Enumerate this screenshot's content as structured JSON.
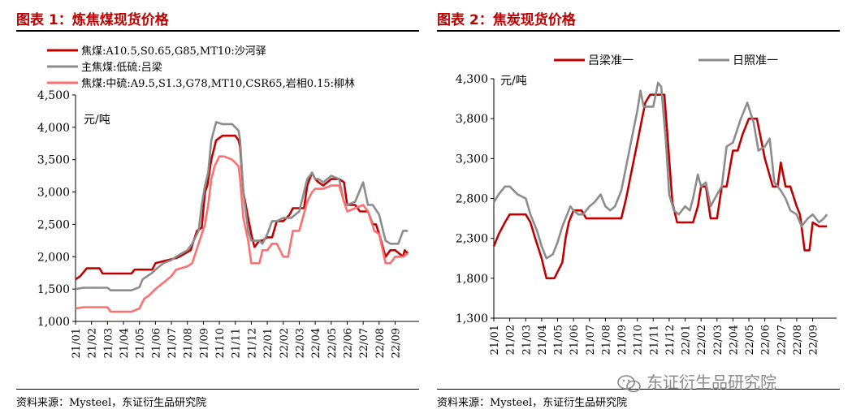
{
  "panels": [
    {
      "title": "图表 1：炼焦煤现货价格",
      "unit": "元/吨",
      "source": "资料来源：Mysteel，东证衍生品研究院"
    },
    {
      "title": "图表 2：焦炭现货价格",
      "unit": "元/吨",
      "source": "资料来源：Mysteel，东证衍生品研究院"
    }
  ],
  "watermark": "东证衍生品研究院",
  "chart_data": [
    {
      "type": "line",
      "title": "炼焦煤现货价格",
      "ylabel": "元/吨",
      "ylim": [
        1000,
        4500
      ],
      "yticks": [
        1000,
        1500,
        2000,
        2500,
        3000,
        3500,
        4000,
        4500
      ],
      "ytick_labels": [
        "1,000",
        "1,500",
        "2,000",
        "2,500",
        "3,000",
        "3,500",
        "4,000",
        "4,500"
      ],
      "xlim": [
        0,
        21.5
      ],
      "xtick_labels": [
        "21/01",
        "21/02",
        "21/03",
        "21/04",
        "21/05",
        "21/06",
        "21/07",
        "21/08",
        "21/09",
        "21/10",
        "21/11",
        "21/12",
        "22/01",
        "22/02",
        "22/03",
        "22/04",
        "22/05",
        "22/06",
        "22/07",
        "22/08",
        "22/09"
      ],
      "legend_position": "top-left",
      "grid": false,
      "series": [
        {
          "name": "焦煤:A10.5,S0.65,G85,MT10:沙河驿",
          "color": "#c00000",
          "x": [
            0,
            0.3,
            0.7,
            1.5,
            1.7,
            3.5,
            3.7,
            4.8,
            5.0,
            6.3,
            6.5,
            7.2,
            7.6,
            7.9,
            8.1,
            8.25,
            8.5,
            8.8,
            9.2,
            10.0,
            10.2,
            10.3,
            10.5,
            10.8,
            11.0,
            11.2,
            11.5,
            11.7,
            12.0,
            12.3,
            12.6,
            13.0,
            13.4,
            13.6,
            14.3,
            14.5,
            14.8,
            15.0,
            15.2,
            15.5,
            16.0,
            16.5,
            16.8,
            17.0,
            17.3,
            17.5,
            17.8,
            18.0,
            18.3,
            18.6,
            18.8,
            19.0,
            19.4,
            19.7,
            20.0,
            20.5,
            20.6,
            20.8
          ],
          "y": [
            1650,
            1700,
            1820,
            1820,
            1740,
            1740,
            1800,
            1800,
            1900,
            1980,
            2000,
            2100,
            2400,
            2450,
            3000,
            3100,
            3500,
            3800,
            3870,
            3870,
            3800,
            3700,
            3000,
            2600,
            2350,
            2150,
            2250,
            2250,
            2300,
            2300,
            2550,
            2550,
            2650,
            2750,
            2750,
            3100,
            3300,
            3200,
            3150,
            3100,
            3200,
            3200,
            3150,
            2800,
            2800,
            2800,
            2700,
            2700,
            2700,
            2500,
            2500,
            2350,
            2000,
            2100,
            2100,
            2000,
            2100,
            2050
          ]
        },
        {
          "name": "主焦煤:低硫:吕梁",
          "color": "#8c8c8c",
          "x": [
            0,
            0.5,
            2.0,
            2.2,
            3.5,
            4.0,
            4.2,
            4.5,
            4.8,
            5.0,
            5.5,
            6.0,
            6.3,
            7.0,
            7.3,
            7.5,
            7.7,
            7.9,
            8.1,
            8.3,
            8.5,
            8.8,
            9.2,
            9.8,
            10.2,
            10.3,
            10.5,
            10.8,
            11.0,
            11.5,
            11.7,
            12.0,
            12.3,
            12.6,
            13.0,
            13.5,
            14.0,
            14.5,
            14.8,
            15.0,
            15.2,
            15.5,
            16.0,
            16.5,
            16.8,
            17.0,
            17.5,
            18.0,
            18.3,
            18.6,
            19.0,
            19.4,
            19.7,
            20.0,
            20.2,
            20.5,
            20.8
          ],
          "y": [
            1500,
            1520,
            1520,
            1480,
            1480,
            1530,
            1650,
            1700,
            1750,
            1800,
            1900,
            1950,
            2000,
            2100,
            2200,
            2300,
            2400,
            2800,
            3100,
            3300,
            3800,
            4080,
            4050,
            4050,
            3950,
            3800,
            3000,
            2400,
            2250,
            2250,
            2200,
            2350,
            2550,
            2550,
            2600,
            2600,
            2700,
            3200,
            3300,
            3200,
            3200,
            3150,
            3250,
            3200,
            2850,
            2800,
            2850,
            3150,
            2800,
            2800,
            2650,
            2250,
            2200,
            2200,
            2200,
            2400,
            2400
          ]
        },
        {
          "name": "焦煤:中硫:A9.5,S1.3,G78,MT10,CSR65,岩相0.15:柳林",
          "color": "#ff6f6f",
          "x": [
            0,
            0.5,
            2.0,
            2.2,
            3.5,
            4.0,
            4.3,
            4.6,
            5.0,
            5.5,
            6.0,
            6.3,
            7.0,
            7.3,
            7.7,
            8.1,
            8.3,
            8.5,
            8.7,
            9.0,
            9.3,
            9.8,
            10.2,
            10.3,
            10.5,
            10.8,
            11.0,
            11.5,
            11.7,
            12.0,
            12.3,
            12.6,
            13.0,
            13.3,
            13.6,
            14.0,
            14.5,
            14.8,
            15.0,
            15.5,
            16.0,
            16.5,
            16.8,
            17.0,
            17.5,
            18.0,
            18.3,
            18.7,
            19.0,
            19.4,
            19.7,
            20.0,
            20.5,
            20.8
          ],
          "y": [
            1200,
            1220,
            1220,
            1150,
            1150,
            1200,
            1350,
            1400,
            1500,
            1600,
            1700,
            1800,
            1850,
            1900,
            2200,
            2500,
            2800,
            3200,
            3400,
            3550,
            3550,
            3500,
            3400,
            3200,
            2600,
            2250,
            1900,
            1900,
            2100,
            2100,
            2200,
            2200,
            2000,
            2000,
            2400,
            2400,
            2850,
            3000,
            3050,
            3050,
            3100,
            3100,
            2850,
            2700,
            2750,
            2800,
            2700,
            2400,
            2350,
            1900,
            1900,
            2000,
            2000,
            2050
          ]
        }
      ]
    },
    {
      "type": "line",
      "title": "焦炭现货价格",
      "ylabel": "元/吨",
      "ylim": [
        1300,
        4300
      ],
      "yticks": [
        1300,
        1800,
        2300,
        2800,
        3300,
        3800,
        4300
      ],
      "ytick_labels": [
        "1,300",
        "1,800",
        "2,300",
        "2,800",
        "3,300",
        "3,800",
        "4,300"
      ],
      "xlim": [
        0,
        21.5
      ],
      "xtick_labels": [
        "21/01",
        "21/02",
        "21/03",
        "21/04",
        "21/05",
        "21/06",
        "21/07",
        "21/08",
        "21/09",
        "21/10",
        "21/11",
        "21/12",
        "22/01",
        "22/02",
        "22/03",
        "22/04",
        "22/05",
        "22/06",
        "22/07",
        "22/08",
        "22/09"
      ],
      "legend_position": "top",
      "grid": false,
      "series": [
        {
          "name": "吕梁准一",
          "color": "#c00000",
          "x": [
            0,
            0.3,
            0.7,
            1.0,
            1.3,
            2.0,
            2.3,
            2.6,
            3.0,
            3.3,
            3.5,
            3.8,
            4.3,
            4.5,
            4.7,
            5.0,
            5.5,
            5.8,
            6.0,
            6.3,
            7.0,
            7.5,
            8.0,
            8.3,
            8.6,
            9.0,
            9.3,
            9.5,
            9.8,
            10.0,
            10.5,
            10.7,
            11.0,
            11.2,
            11.5,
            11.8,
            12.0,
            12.5,
            12.8,
            13.0,
            13.3,
            13.6,
            14.0,
            14.3,
            14.6,
            15.0,
            15.3,
            15.6,
            16.0,
            16.5,
            17.0,
            17.5,
            17.8,
            18.0,
            18.3,
            18.6,
            19.0,
            19.2,
            19.5,
            19.8,
            20.0,
            20.4,
            20.7,
            20.9
          ],
          "y": [
            2200,
            2350,
            2500,
            2600,
            2600,
            2600,
            2500,
            2300,
            2050,
            1800,
            1800,
            1800,
            2000,
            2300,
            2500,
            2650,
            2650,
            2550,
            2550,
            2550,
            2550,
            2550,
            2550,
            2800,
            3100,
            3500,
            3800,
            4000,
            4100,
            4100,
            4100,
            4100,
            3300,
            2750,
            2500,
            2500,
            2500,
            2500,
            2700,
            2950,
            2950,
            2550,
            2550,
            2950,
            2950,
            3400,
            3400,
            3600,
            3800,
            3800,
            3300,
            2950,
            2950,
            3250,
            2950,
            2950,
            2700,
            2600,
            2150,
            2150,
            2500,
            2450,
            2450,
            2450
          ]
        },
        {
          "name": "日照准一",
          "color": "#8c8c8c",
          "x": [
            0,
            0.3,
            0.7,
            1.0,
            1.5,
            2.0,
            2.3,
            2.7,
            3.0,
            3.3,
            3.7,
            4.0,
            4.3,
            4.6,
            4.8,
            5.0,
            5.3,
            5.6,
            6.0,
            6.3,
            6.7,
            7.0,
            7.3,
            7.6,
            8.0,
            8.3,
            8.6,
            9.0,
            9.2,
            9.4,
            9.7,
            10.0,
            10.3,
            10.5,
            10.8,
            11.0,
            11.3,
            11.6,
            12.0,
            12.3,
            12.5,
            12.8,
            13.0,
            13.3,
            13.6,
            14.0,
            14.3,
            14.6,
            15.0,
            15.5,
            15.9,
            16.3,
            16.6,
            17.0,
            17.3,
            17.6,
            18.0,
            18.3,
            18.6,
            19.0,
            19.3,
            19.7,
            20.0,
            20.4,
            20.7,
            20.9
          ],
          "y": [
            2750,
            2850,
            2950,
            2950,
            2850,
            2800,
            2600,
            2400,
            2200,
            2050,
            2100,
            2250,
            2450,
            2600,
            2700,
            2650,
            2600,
            2600,
            2700,
            2750,
            2850,
            2700,
            2650,
            2700,
            2900,
            3200,
            3500,
            3900,
            4150,
            3950,
            3950,
            3950,
            4250,
            4200,
            3500,
            2850,
            2650,
            2600,
            2700,
            2650,
            2800,
            3100,
            2950,
            3000,
            2700,
            2850,
            2950,
            3450,
            3500,
            3800,
            4000,
            3750,
            3400,
            3450,
            3550,
            3000,
            2900,
            2800,
            2650,
            2600,
            2450,
            2550,
            2600,
            2500,
            2550,
            2600
          ]
        }
      ]
    }
  ]
}
